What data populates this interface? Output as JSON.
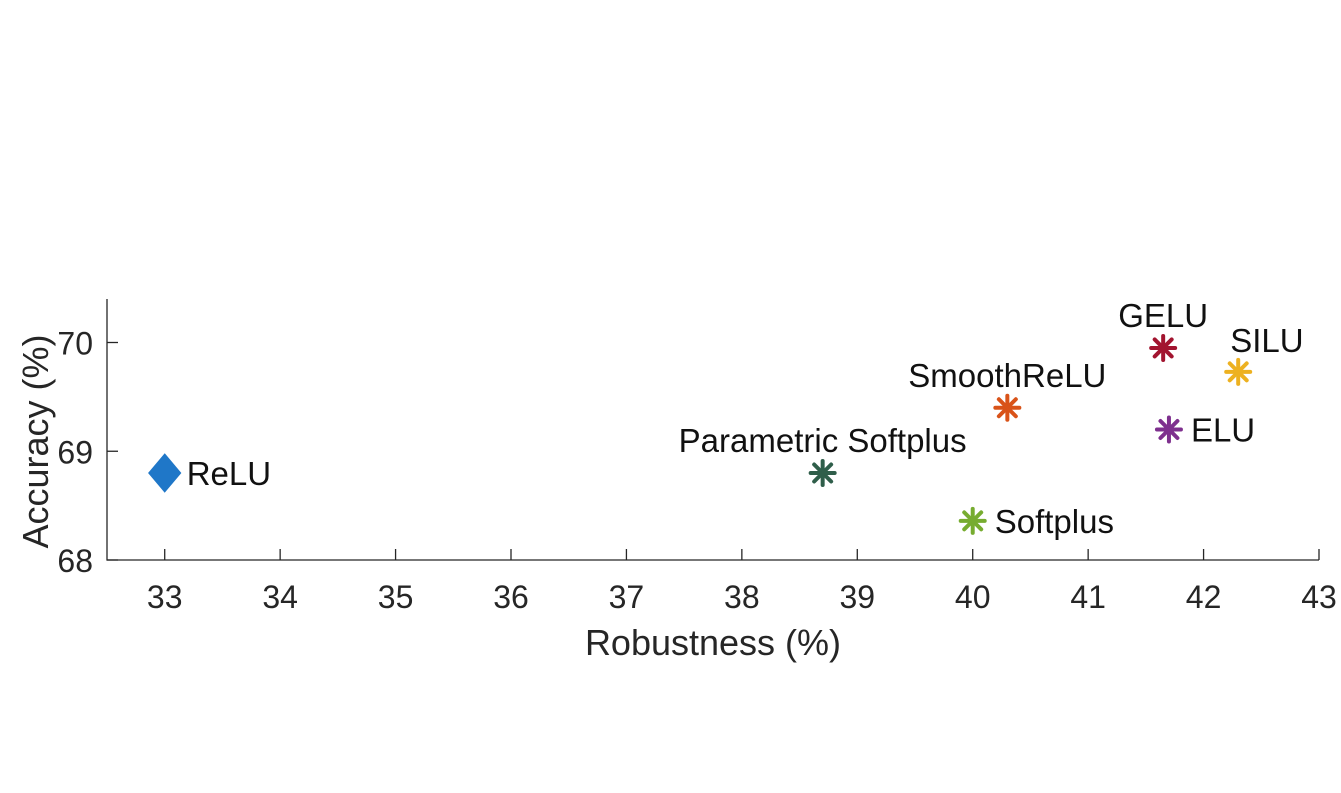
{
  "chart_data": {
    "type": "scatter",
    "title": "",
    "xlabel": "Robustness (%)",
    "ylabel": "Accuracy (%)",
    "xlim": [
      32.5,
      43
    ],
    "ylim": [
      68,
      70.4
    ],
    "xticks": [
      33,
      34,
      35,
      36,
      37,
      38,
      39,
      40,
      41,
      42,
      43
    ],
    "yticks": [
      68,
      69,
      70
    ],
    "grid": false,
    "legend": "none",
    "points": [
      {
        "label": "ReLU",
        "x": 33.0,
        "y": 68.8,
        "marker": "diamond",
        "color": "#1f77c8",
        "label_pos": "right"
      },
      {
        "label": "Parametric Softplus",
        "x": 38.7,
        "y": 68.8,
        "marker": "asterisk",
        "color": "#2f5e4a",
        "label_pos": "above"
      },
      {
        "label": "Softplus",
        "x": 40.0,
        "y": 68.36,
        "marker": "asterisk",
        "color": "#77ac30",
        "label_pos": "right"
      },
      {
        "label": "SmoothReLU",
        "x": 40.3,
        "y": 69.4,
        "marker": "asterisk",
        "color": "#d95319",
        "label_pos": "above"
      },
      {
        "label": "GELU",
        "x": 41.65,
        "y": 69.95,
        "marker": "asterisk",
        "color": "#a2142f",
        "label_pos": "above"
      },
      {
        "label": "ELU",
        "x": 41.7,
        "y": 69.2,
        "marker": "asterisk",
        "color": "#7e2f8e",
        "label_pos": "right"
      },
      {
        "label": "SILU",
        "x": 42.3,
        "y": 69.73,
        "marker": "asterisk",
        "color": "#edb120",
        "label_pos": "above-right"
      }
    ]
  }
}
